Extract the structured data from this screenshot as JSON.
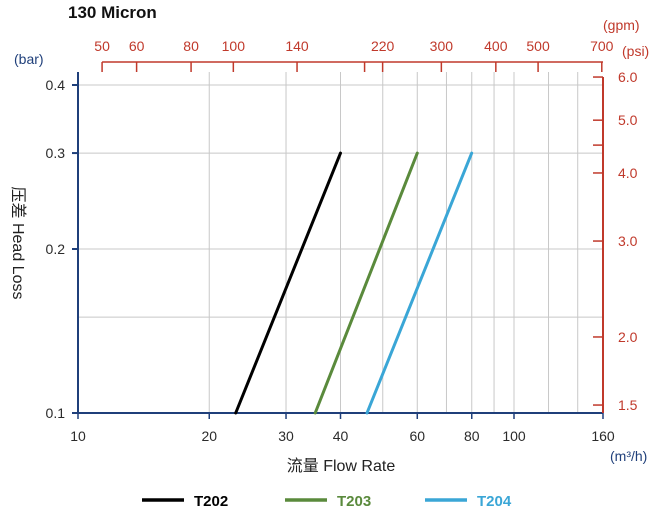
{
  "chart_data": {
    "type": "line",
    "title": "130 Micron",
    "xlabel": "流量 Flow Rate",
    "ylabel": "压差 Head Loss",
    "x_unit": "(m³/h)",
    "y_unit": "(bar)",
    "x_scale": "log",
    "y_scale": "log",
    "xlim": [
      10,
      160
    ],
    "ylim": [
      0.1,
      0.42
    ],
    "grid": true,
    "legend_position": "bottom",
    "x_ticks": [
      "10",
      "20",
      "30",
      "40",
      "60",
      "80",
      "100",
      "160"
    ],
    "x_tick_values": [
      10,
      20,
      30,
      40,
      60,
      80,
      100,
      160
    ],
    "x_grid_values": [
      20,
      30,
      40,
      50,
      60,
      70,
      80,
      90,
      100,
      120,
      140
    ],
    "y_ticks": [
      "0.1",
      "0.2",
      "0.3",
      "0.4"
    ],
    "y_tick_values": [
      0.1,
      0.2,
      0.3,
      0.4
    ],
    "y_grid_values": [
      0.15,
      0.2,
      0.3,
      0.4
    ],
    "top_axis": {
      "unit": "(gpm)",
      "ticks": [
        "50",
        "60",
        "80",
        "100",
        "140",
        "220",
        "300",
        "400",
        "500",
        "700"
      ],
      "tick_values": [
        50,
        60,
        80,
        100,
        140,
        220,
        300,
        400,
        500,
        700
      ],
      "minor_values": [
        200
      ],
      "factor_from_x": 4.4029
    },
    "right_axis": {
      "unit": "(psi)",
      "ticks": [
        "1.5",
        "2.0",
        "3.0",
        "4.0",
        "5.0",
        "6.0"
      ],
      "tick_values": [
        1.5,
        2.0,
        3.0,
        4.0,
        5.0,
        6.0
      ],
      "minor_values": [
        4.5
      ],
      "factor_from_y": 14.5038
    },
    "series": [
      {
        "name": "T202",
        "color": "#000000",
        "x": [
          23,
          40
        ],
        "y": [
          0.1,
          0.3
        ]
      },
      {
        "name": "T203",
        "color": "#5a8a3c",
        "x": [
          35,
          60
        ],
        "y": [
          0.1,
          0.3
        ]
      },
      {
        "name": "T204",
        "color": "#3aa6d6",
        "x": [
          46,
          80
        ],
        "y": [
          0.1,
          0.3
        ]
      }
    ],
    "colors": {
      "left_axis": "#1f3f7a",
      "secondary_axes": "#c0392b",
      "grid": "#c8c8c8"
    }
  }
}
